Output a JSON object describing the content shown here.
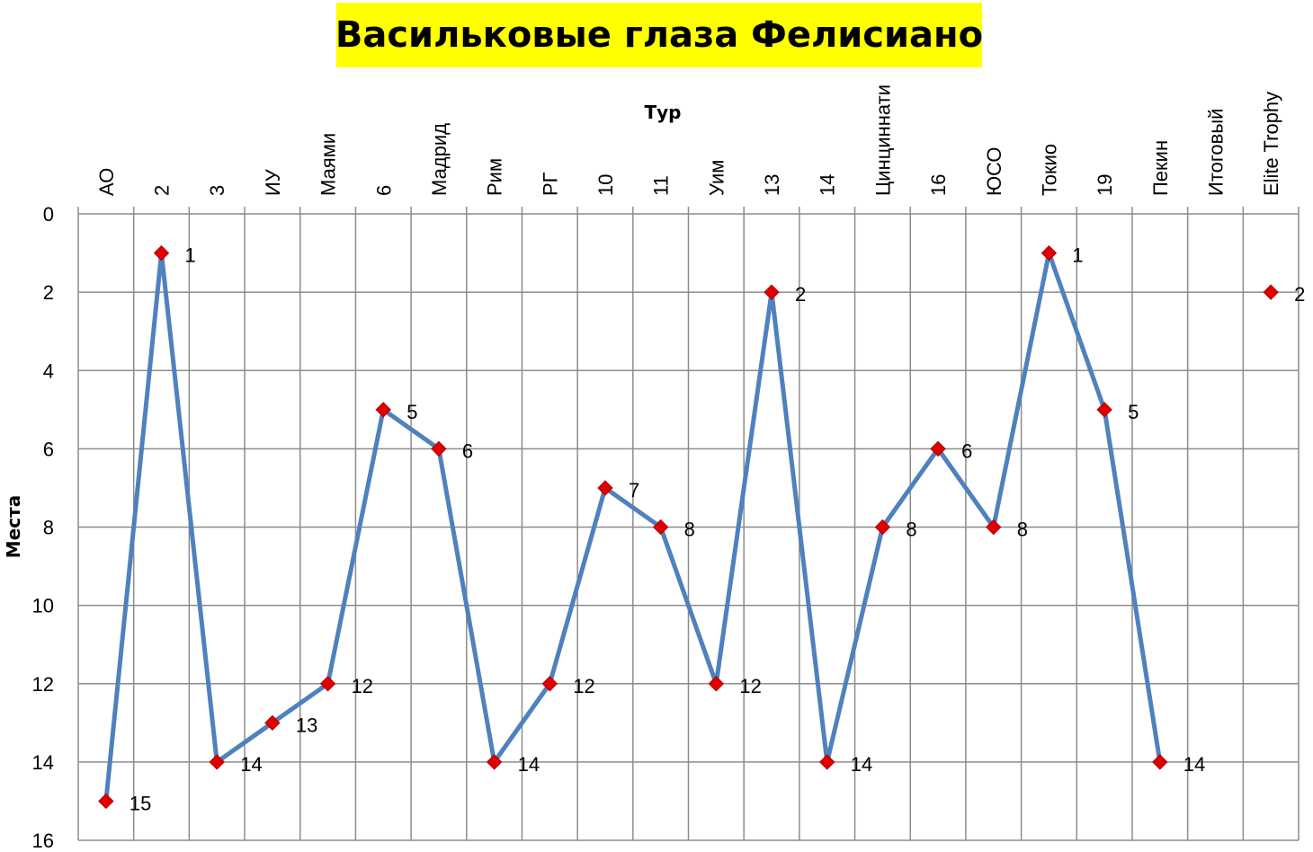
{
  "chart_data": {
    "type": "line",
    "title": "Васильковые глаза Фелисиано",
    "xlabel": "Тур",
    "ylabel": "Места",
    "categories": [
      "АО",
      "2",
      "3",
      "ИУ",
      "Маями",
      "6",
      "Мадрид",
      "Рим",
      "РГ",
      "10",
      "11",
      "Уим",
      "13",
      "14",
      "Цинциннати",
      "16",
      "ЮСО",
      "Токио",
      "19",
      "Пекин",
      "Итоговый",
      "Elite Trophy"
    ],
    "series": [
      {
        "values": [
          15,
          1,
          14,
          13,
          12,
          5,
          6,
          14,
          12,
          7,
          8,
          12,
          2,
          14,
          8,
          6,
          8,
          1,
          5,
          14,
          null,
          2
        ]
      }
    ],
    "ylim": [
      0,
      16
    ],
    "y_ticks": [
      0,
      2,
      4,
      6,
      8,
      10,
      12,
      14,
      16
    ],
    "y_reversed": true,
    "x_axis_position": "top",
    "grid": true,
    "legend": "none",
    "colors": {
      "line": "#4f81bd",
      "marker": "#e00000",
      "grid": "#8c8c8c",
      "title_bg": "#ffff00"
    }
  }
}
